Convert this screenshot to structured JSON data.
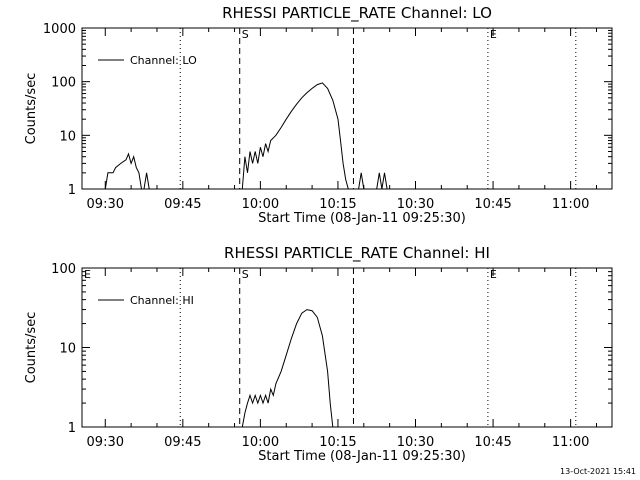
{
  "timestamp": "13-Oct-2021 15:41",
  "chart_data": [
    {
      "type": "line",
      "title": "RHESSI PARTICLE_RATE Channel: LO",
      "xlabel": "Start Time (08-Jan-11 09:25:30)",
      "ylabel": "Counts/sec",
      "yscale": "log",
      "ylim": [
        1,
        1000
      ],
      "yticks": [
        "1",
        "10",
        "100",
        "1000"
      ],
      "xlim": [
        "09:25:30",
        "11:08:00"
      ],
      "xticks": [
        "09:30",
        "09:45",
        "10:00",
        "10:15",
        "10:30",
        "10:45",
        "11:00"
      ],
      "grid": false,
      "legend": "top-left",
      "series": [
        {
          "name": "Channel: LO",
          "points": [
            [
              "09:30:00",
              1
            ],
            [
              "09:30:30",
              2
            ],
            [
              "09:31:30",
              2
            ],
            [
              "09:32:00",
              2.5
            ],
            [
              "09:33:00",
              3
            ],
            [
              "09:34:00",
              3.5
            ],
            [
              "09:34:30",
              4.5
            ],
            [
              "09:35:00",
              3
            ],
            [
              "09:35:30",
              4
            ],
            [
              "09:36:00",
              2.5
            ],
            [
              "09:36:30",
              2
            ],
            [
              "09:37:00",
              1
            ],
            [
              "09:37:30",
              1
            ],
            [
              "09:38:00",
              2
            ],
            [
              "09:38:30",
              1
            ],
            [
              "09:56:30",
              1
            ],
            [
              "09:57:00",
              4
            ],
            [
              "09:57:30",
              2
            ],
            [
              "09:58:00",
              5
            ],
            [
              "09:58:30",
              3
            ],
            [
              "09:59:00",
              5
            ],
            [
              "09:59:30",
              3
            ],
            [
              "10:00:00",
              6
            ],
            [
              "10:00:30",
              4
            ],
            [
              "10:01:00",
              7
            ],
            [
              "10:01:30",
              5
            ],
            [
              "10:02:00",
              8
            ],
            [
              "10:03:00",
              10
            ],
            [
              "10:04:00",
              14
            ],
            [
              "10:05:00",
              20
            ],
            [
              "10:06:00",
              28
            ],
            [
              "10:07:00",
              38
            ],
            [
              "10:08:00",
              50
            ],
            [
              "10:09:00",
              62
            ],
            [
              "10:10:00",
              75
            ],
            [
              "10:11:00",
              88
            ],
            [
              "10:12:00",
              95
            ],
            [
              "10:13:00",
              75
            ],
            [
              "10:14:00",
              45
            ],
            [
              "10:15:00",
              20
            ],
            [
              "10:15:30",
              8
            ],
            [
              "10:16:00",
              3
            ],
            [
              "10:16:30",
              1.5
            ],
            [
              "10:17:00",
              1
            ],
            [
              "10:19:00",
              1
            ],
            [
              "10:19:30",
              2
            ],
            [
              "10:20:00",
              1
            ],
            [
              "10:22:30",
              1
            ],
            [
              "10:23:00",
              2
            ],
            [
              "10:23:30",
              1
            ],
            [
              "10:24:00",
              2
            ],
            [
              "10:24:30",
              1
            ]
          ]
        }
      ],
      "markers": [
        {
          "label": "S",
          "time": "09:56:00",
          "style": "dashed"
        },
        {
          "label": "",
          "time": "10:18:00",
          "style": "dashed"
        },
        {
          "label": "",
          "time": "09:44:30",
          "style": "dotted"
        },
        {
          "label": "E",
          "time": "10:44:00",
          "style": "dotted"
        },
        {
          "label": "",
          "time": "11:01:00",
          "style": "dotted"
        }
      ]
    },
    {
      "type": "line",
      "title": "RHESSI PARTICLE_RATE Channel: HI",
      "xlabel": "Start Time (08-Jan-11 09:25:30)",
      "ylabel": "Counts/sec",
      "yscale": "log",
      "ylim": [
        1,
        100
      ],
      "yticks": [
        "1",
        "10",
        "100"
      ],
      "xlim": [
        "09:25:30",
        "11:08:00"
      ],
      "xticks": [
        "09:30",
        "09:45",
        "10:00",
        "10:15",
        "10:30",
        "10:45",
        "11:00"
      ],
      "grid": false,
      "legend": "top-left",
      "series": [
        {
          "name": "Channel: HI",
          "points": [
            [
              "09:56:30",
              1
            ],
            [
              "09:57:00",
              1.5
            ],
            [
              "09:57:30",
              2
            ],
            [
              "09:58:00",
              2.5
            ],
            [
              "09:58:30",
              2
            ],
            [
              "09:59:00",
              2.5
            ],
            [
              "09:59:30",
              2
            ],
            [
              "10:00:00",
              2.5
            ],
            [
              "10:00:30",
              2
            ],
            [
              "10:01:00",
              2.5
            ],
            [
              "10:01:30",
              2
            ],
            [
              "10:02:00",
              3
            ],
            [
              "10:02:30",
              2.5
            ],
            [
              "10:03:00",
              3.5
            ],
            [
              "10:04:00",
              5
            ],
            [
              "10:05:00",
              8
            ],
            [
              "10:06:00",
              13
            ],
            [
              "10:07:00",
              20
            ],
            [
              "10:08:00",
              27
            ],
            [
              "10:09:00",
              30
            ],
            [
              "10:10:00",
              29
            ],
            [
              "10:11:00",
              24
            ],
            [
              "10:12:00",
              14
            ],
            [
              "10:13:00",
              5
            ],
            [
              "10:13:30",
              2
            ],
            [
              "10:14:00",
              1
            ]
          ]
        }
      ],
      "markers": [
        {
          "label": "S",
          "time": "09:56:00",
          "style": "dashed"
        },
        {
          "label": "",
          "time": "10:18:00",
          "style": "dashed"
        },
        {
          "label": "",
          "time": "09:44:30",
          "style": "dotted"
        },
        {
          "label": "E",
          "time": "10:44:00",
          "style": "dotted"
        },
        {
          "label": "",
          "time": "11:01:00",
          "style": "dotted"
        },
        {
          "label": "E",
          "time": "09:25:30",
          "style": "none"
        }
      ]
    }
  ]
}
